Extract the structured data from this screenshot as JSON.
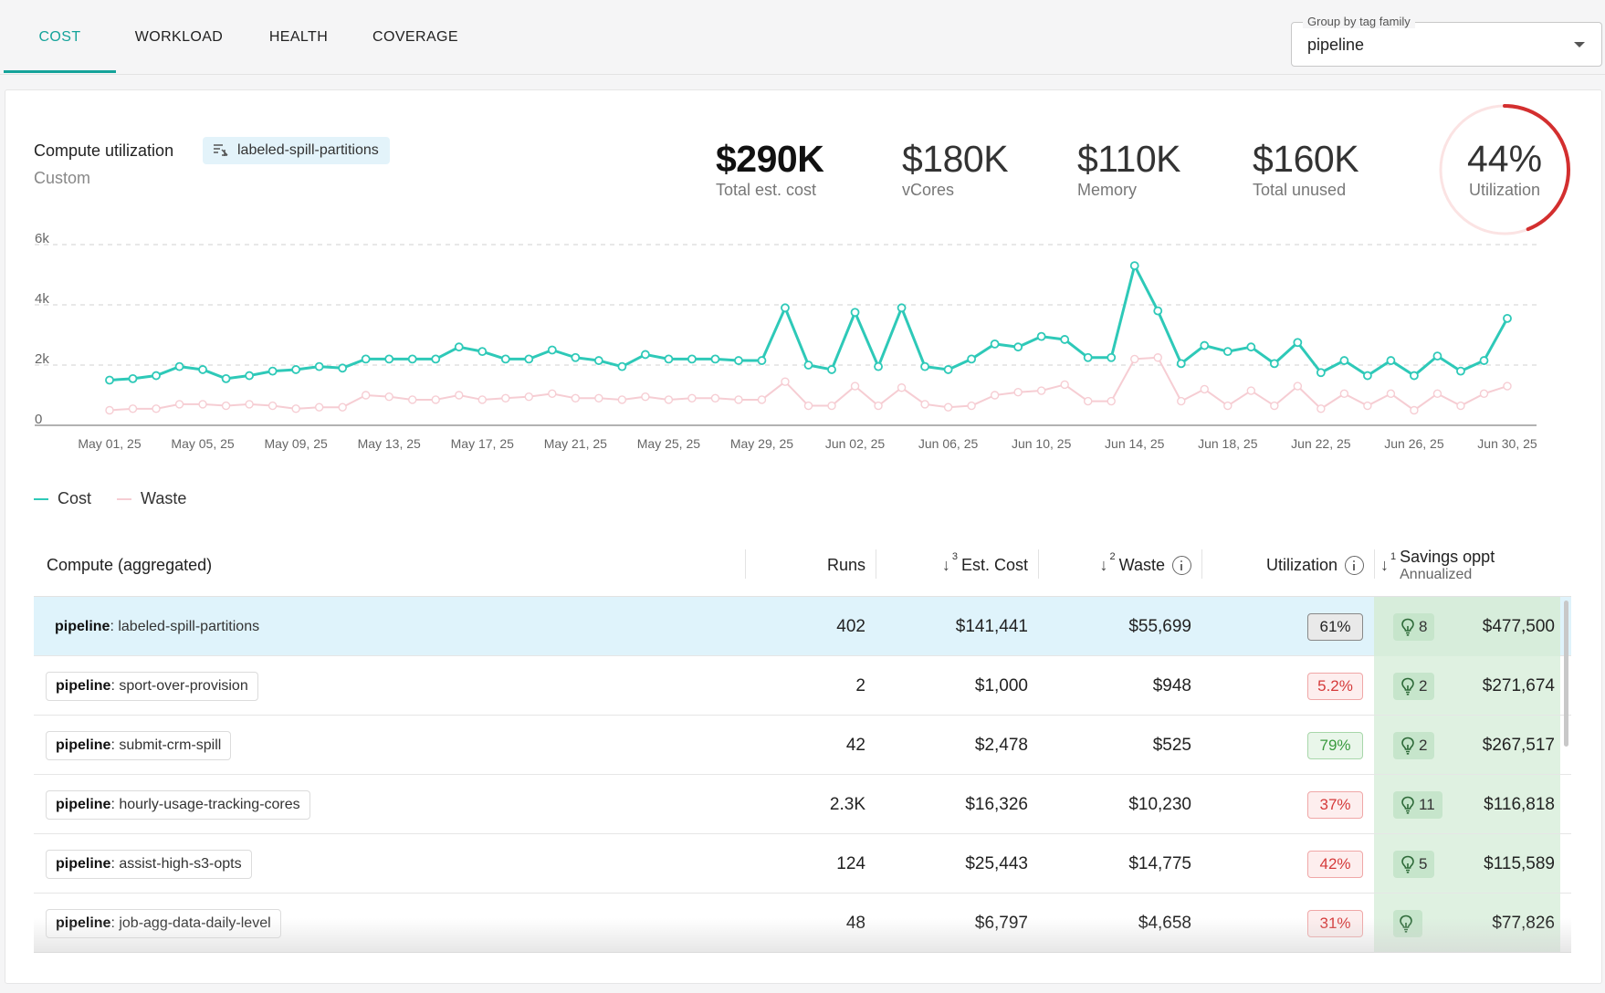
{
  "tabs": [
    {
      "label": "COST",
      "active": true
    },
    {
      "label": "WORKLOAD",
      "active": false
    },
    {
      "label": "HEALTH",
      "active": false
    },
    {
      "label": "COVERAGE",
      "active": false
    }
  ],
  "group_by": {
    "legend": "Group by tag family",
    "value": "pipeline"
  },
  "panel": {
    "title": "Compute utilization",
    "subtitle": "Custom",
    "tag_icon": "tag-filter-icon",
    "tag": "labeled-spill-partitions"
  },
  "kpis": [
    {
      "value": "$290K",
      "label": "Total est. cost"
    },
    {
      "value": "$180K",
      "label": "vCores"
    },
    {
      "value": "$110K",
      "label": "Memory"
    },
    {
      "value": "$160K",
      "label": "Total unused"
    }
  ],
  "utilization": {
    "value": "44%",
    "label": "Utilization",
    "fraction": 0.44
  },
  "colors": {
    "accent": "#14a39a",
    "cost": "#2ec9b8",
    "waste": "#f6cdd3",
    "ring": "#d32f2f"
  },
  "chart_data": {
    "type": "line",
    "title": "",
    "xlabel": "",
    "ylabel": "",
    "ylim": [
      0,
      6000
    ],
    "yticks": [
      "0",
      "2k",
      "4k",
      "6k"
    ],
    "xticks": [
      "May 01, 25",
      "May 05, 25",
      "May 09, 25",
      "May 13, 25",
      "May 17, 25",
      "May 21, 25",
      "May 25, 25",
      "May 29, 25",
      "Jun 02, 25",
      "Jun 06, 25",
      "Jun 10, 25",
      "Jun 14, 25",
      "Jun 18, 25",
      "Jun 22, 25",
      "Jun 26, 25",
      "Jun 30, 25"
    ],
    "series": [
      {
        "name": "Cost",
        "values": [
          1500,
          1550,
          1650,
          1950,
          1850,
          1550,
          1650,
          1800,
          1850,
          1950,
          1900,
          2200,
          2200,
          2200,
          2200,
          2600,
          2450,
          2200,
          2200,
          2500,
          2250,
          2150,
          1950,
          2350,
          2200,
          2200,
          2200,
          2150,
          2150,
          3900,
          2000,
          1850,
          3750,
          1950,
          3900,
          1950,
          1850,
          2200,
          2700,
          2600,
          2950,
          2850,
          2250,
          2250,
          5300,
          3800,
          2050,
          2650,
          2450,
          2600,
          2050,
          2750,
          1750,
          2150,
          1650,
          2150,
          1650,
          2300,
          1800,
          2150,
          3550
        ]
      },
      {
        "name": "Waste",
        "values": [
          500,
          550,
          550,
          700,
          700,
          650,
          700,
          650,
          550,
          600,
          600,
          1000,
          950,
          850,
          850,
          1000,
          850,
          900,
          950,
          1050,
          900,
          900,
          850,
          950,
          850,
          900,
          900,
          850,
          850,
          1450,
          650,
          650,
          1300,
          650,
          1250,
          700,
          600,
          650,
          1000,
          1100,
          1150,
          1350,
          800,
          800,
          2200,
          2250,
          800,
          1200,
          650,
          1150,
          650,
          1300,
          550,
          1050,
          650,
          1050,
          500,
          1050,
          650,
          1050,
          1300
        ]
      }
    ]
  },
  "legend": [
    {
      "label": "Cost"
    },
    {
      "label": "Waste"
    }
  ],
  "table": {
    "columns": {
      "name": "Compute (aggregated)",
      "runs": "Runs",
      "cost_rank": "3",
      "cost": "Est. Cost",
      "waste_rank": "2",
      "waste": "Waste",
      "util": "Utilization",
      "savings_rank": "1",
      "savings": "Savings oppt",
      "savings_sub": "Annualized"
    },
    "rows": [
      {
        "key": "pipeline",
        "name": "labeled-spill-partitions",
        "runs": "402",
        "cost": "$141,441",
        "waste": "$55,699",
        "util": "61%",
        "util_status": "neutral",
        "tips": "8",
        "savings": "$477,500",
        "selected": true
      },
      {
        "key": "pipeline",
        "name": "sport-over-provision",
        "runs": "2",
        "cost": "$1,000",
        "waste": "$948",
        "util": "5.2%",
        "util_status": "red",
        "tips": "2",
        "savings": "$271,674",
        "selected": false
      },
      {
        "key": "pipeline",
        "name": "submit-crm-spill",
        "runs": "42",
        "cost": "$2,478",
        "waste": "$525",
        "util": "79%",
        "util_status": "green",
        "tips": "2",
        "savings": "$267,517",
        "selected": false
      },
      {
        "key": "pipeline",
        "name": "hourly-usage-tracking-cores",
        "runs": "2.3K",
        "cost": "$16,326",
        "waste": "$10,230",
        "util": "37%",
        "util_status": "red",
        "tips": "11",
        "savings": "$116,818",
        "selected": false
      },
      {
        "key": "pipeline",
        "name": "assist-high-s3-opts",
        "runs": "124",
        "cost": "$25,443",
        "waste": "$14,775",
        "util": "42%",
        "util_status": "red",
        "tips": "5",
        "savings": "$115,589",
        "selected": false
      },
      {
        "key": "pipeline",
        "name": "job-agg-data-daily-level",
        "runs": "48",
        "cost": "$6,797",
        "waste": "$4,658",
        "util": "31%",
        "util_status": "red",
        "tips": "",
        "savings": "$77,826",
        "selected": false
      }
    ]
  }
}
